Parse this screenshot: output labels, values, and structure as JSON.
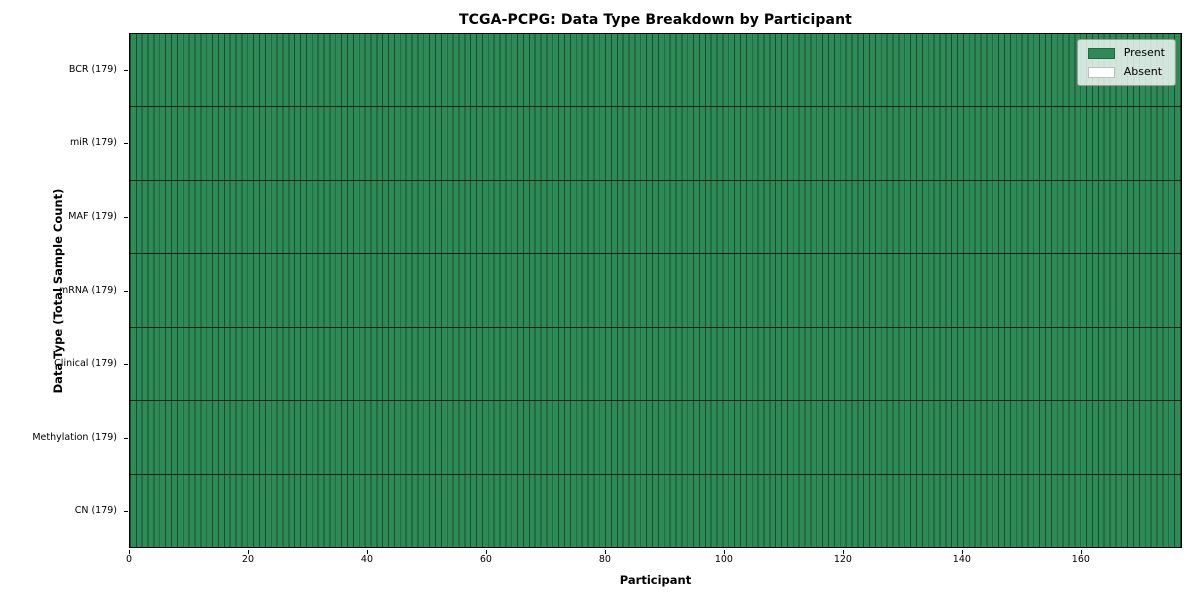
{
  "figure": {
    "title": "TCGA-PCPG: Data Type Breakdown by Participant",
    "xlabel": "Participant",
    "ylabel": "Data Type (Total Sample Count)"
  },
  "legend": {
    "items": [
      {
        "label": "Present",
        "color": "#2e8b57"
      },
      {
        "label": "Absent",
        "color": "#ffffff"
      }
    ]
  },
  "chart_data": {
    "type": "heatmap",
    "title": "TCGA-PCPG: Data Type Breakdown by Participant",
    "xlabel": "Participant",
    "ylabel": "Data Type (Total Sample Count)",
    "legend_position": "upper right",
    "grid": "cell-borders",
    "x_ticks": [
      0,
      20,
      40,
      60,
      80,
      100,
      120,
      140,
      160
    ],
    "xlim": [
      0,
      179
    ],
    "participants": 179,
    "cell_colors": {
      "present": "#2e8b57",
      "absent": "#ffffff"
    },
    "all_cells_present": true,
    "rows": [
      {
        "label": "BCR (179)",
        "data_type": "BCR",
        "total_samples": 179,
        "present_count": 179,
        "absent_count": 0
      },
      {
        "label": "miR (179)",
        "data_type": "miR",
        "total_samples": 179,
        "present_count": 179,
        "absent_count": 0
      },
      {
        "label": "MAF (179)",
        "data_type": "MAF",
        "total_samples": 179,
        "present_count": 179,
        "absent_count": 0
      },
      {
        "label": "mRNA (179)",
        "data_type": "mRNA",
        "total_samples": 179,
        "present_count": 179,
        "absent_count": 0
      },
      {
        "label": "Clinical (179)",
        "data_type": "Clinical",
        "total_samples": 179,
        "present_count": 179,
        "absent_count": 0
      },
      {
        "label": "Methylation (179)",
        "data_type": "Methylation",
        "total_samples": 179,
        "present_count": 179,
        "absent_count": 0
      },
      {
        "label": "CN (179)",
        "data_type": "CN",
        "total_samples": 179,
        "present_count": 179,
        "absent_count": 0
      }
    ]
  }
}
